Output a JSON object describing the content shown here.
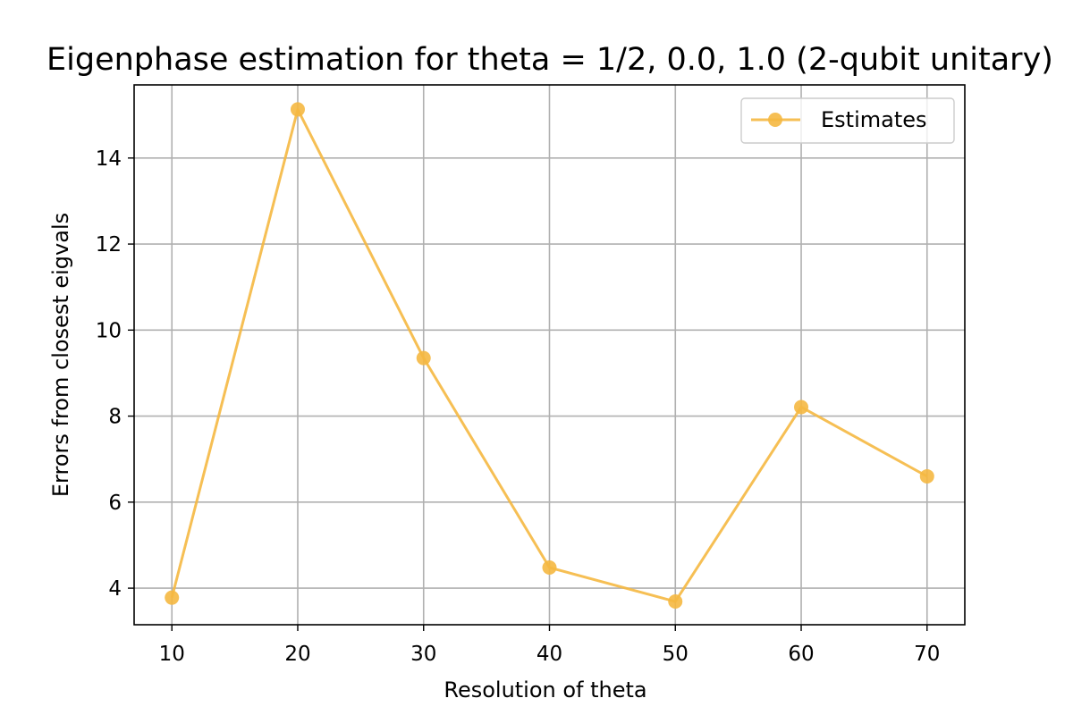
{
  "chart_data": {
    "type": "line",
    "title": "Eigenphase estimation for theta = 1/2, 0.0, 1.0 (2-qubit unitary)",
    "xlabel": "Resolution of theta",
    "ylabel": "Errors from closest eigvals",
    "x": [
      10,
      20,
      30,
      40,
      50,
      60,
      70
    ],
    "xlim": [
      7,
      73
    ],
    "ylim": [
      3.15,
      15.7
    ],
    "xticks": [
      10,
      20,
      30,
      40,
      50,
      60,
      70
    ],
    "yticks": [
      4,
      6,
      8,
      10,
      12,
      14
    ],
    "grid": true,
    "legend_position": "upper right",
    "series": [
      {
        "name": "Estimates",
        "color": "#F5B841",
        "marker": "circle",
        "values": [
          3.78,
          15.13,
          9.35,
          4.48,
          3.69,
          8.21,
          6.6
        ]
      }
    ]
  }
}
